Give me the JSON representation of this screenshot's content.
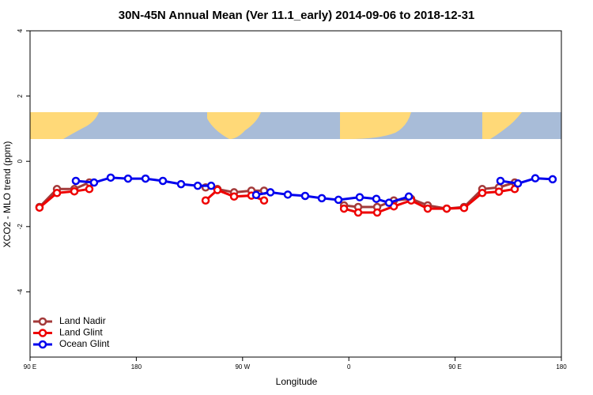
{
  "chart_data": {
    "type": "line",
    "title": "30N-45N Annual Mean (Ver 11.1_early)   2014-09-06 to 2018-12-31",
    "x_label": "Longitude",
    "y_label": "XCO2 - MLO trend (ppm)",
    "xlim": [
      90,
      540
    ],
    "xticks": [
      {
        "value": 90,
        "label": "90 E"
      },
      180,
      {
        "value": 270,
        "label": "90 W"
      },
      {
        "value": 360,
        "label": "0"
      },
      {
        "value": 450,
        "label": "90 E"
      },
      {
        "value": 540,
        "label": "180"
      }
    ],
    "ylim": [
      -6,
      4
    ],
    "yticks": [
      -4,
      -2,
      0,
      2,
      4
    ],
    "legend": "bottom-left",
    "series": [
      {
        "name": "Land Nadir",
        "color": "#a33a3a",
        "x": [
          98,
          112.8,
          127.5,
          140.2,
          null,
          238.7,
          248.7,
          262.8,
          277.5,
          288.2,
          null,
          355.9,
          367.9,
          384,
          398.1,
          412.8,
          426.8,
          442.9,
          457.6,
          473,
          487.1,
          500.5
        ],
        "values": [
          -1.4,
          -0.85,
          -0.85,
          -0.65,
          null,
          -0.8,
          -0.85,
          -0.95,
          -0.9,
          -0.9,
          null,
          -1.35,
          -1.4,
          -1.4,
          -1.2,
          -1.15,
          -1.35,
          -1.45,
          -1.4,
          -0.85,
          -0.8,
          -0.65
        ]
      },
      {
        "name": "Land Glint",
        "color": "#ee0000",
        "x": [
          98,
          112.8,
          127.5,
          140.2,
          null,
          238.7,
          248.7,
          262.8,
          277.5,
          288.2,
          null,
          355.9,
          367.9,
          384,
          398.1,
          412.8,
          426.8,
          442.9,
          457.6,
          473,
          487.1,
          500.5
        ],
        "values": [
          -1.42,
          -0.97,
          -0.92,
          -0.85,
          null,
          -1.2,
          -0.88,
          -1.08,
          -1.05,
          -1.2,
          null,
          -1.45,
          -1.57,
          -1.57,
          -1.38,
          -1.2,
          -1.45,
          -1.45,
          -1.43,
          -0.97,
          -0.93,
          -0.85
        ]
      },
      {
        "name": "Ocean Glint",
        "color": "#0000ee",
        "x": [
          128.8,
          144.2,
          158.3,
          173,
          187.8,
          202.5,
          217.9,
          232,
          243.4,
          null,
          281.5,
          293.6,
          308.3,
          323,
          337.1,
          351.2,
          369.2,
          383.3,
          394,
          410.8,
          null,
          488.4,
          503.2,
          517.9,
          532.6
        ],
        "values": [
          -0.6,
          -0.65,
          -0.5,
          -0.53,
          -0.53,
          -0.6,
          -0.7,
          -0.75,
          -0.75,
          null,
          -1.03,
          -0.95,
          -1.02,
          -1.06,
          -1.13,
          -1.18,
          -1.1,
          -1.15,
          -1.27,
          -1.08,
          null,
          -0.6,
          -0.68,
          -0.52,
          -0.55
        ]
      }
    ]
  }
}
